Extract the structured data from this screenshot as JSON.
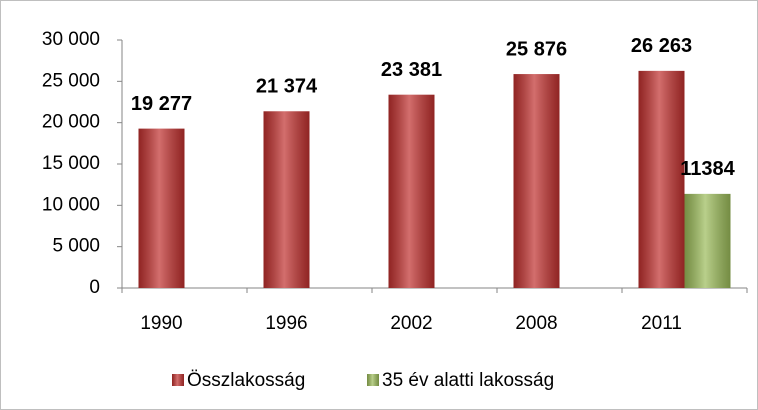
{
  "chart_data": {
    "type": "bar",
    "categories": [
      "1990",
      "1996",
      "2002",
      "2008",
      "2011"
    ],
    "series": [
      {
        "name": "Összlakosság",
        "color": "#c0302e",
        "values": [
          19277,
          21374,
          23381,
          25876,
          26263
        ],
        "value_labels": [
          "19 277",
          "21 374",
          "23 381",
          "25 876",
          "26 263"
        ]
      },
      {
        "name": "35 év alatti lakosság",
        "color": "#9bbb59",
        "values": [
          null,
          null,
          null,
          null,
          11384
        ]
      }
    ],
    "ylim": [
      0,
      30000
    ],
    "yticks": [
      0,
      {
        "value": 5000,
        "label": "5 000"
      },
      {
        "value": 10000,
        "label": "10 000"
      },
      {
        "value": 15000,
        "label": "15 000"
      },
      {
        "value": 20000,
        "label": "20 000"
      },
      {
        "value": 25000,
        "label": "25 000"
      },
      {
        "value": 30000,
        "label": "30 000"
      }
    ],
    "grid": false,
    "legend": "bottom"
  }
}
